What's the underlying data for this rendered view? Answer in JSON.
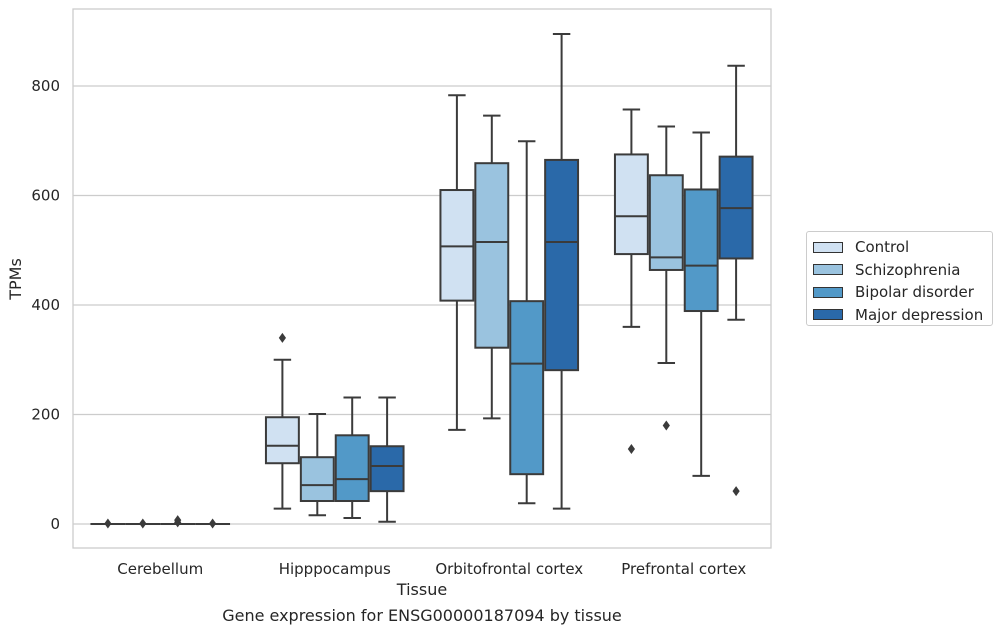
{
  "caption": "Gene expression for ENSG00000187094 by tissue",
  "chart_data": {
    "type": "box",
    "xlabel": "Tissue",
    "ylabel": "TPMs",
    "ylim": [
      -45,
      940
    ],
    "yticks": [
      0,
      200,
      400,
      600,
      800
    ],
    "grid": "horizontal",
    "legend_position": "right",
    "categories": [
      "Cerebellum",
      "Hipppocampus",
      "Orbitofrontal cortex",
      "Prefrontal cortex"
    ],
    "series": [
      {
        "name": "Control",
        "color": "#d0e1f2",
        "boxes": [
          {
            "q1": 0,
            "median": 0,
            "q3": 0,
            "whislo": 0,
            "whishi": 0,
            "fliers": [
              1
            ]
          },
          {
            "q1": 111,
            "median": 143,
            "q3": 195,
            "whislo": 28,
            "whishi": 300,
            "fliers": [
              340
            ]
          },
          {
            "q1": 408,
            "median": 507,
            "q3": 610,
            "whislo": 172,
            "whishi": 783,
            "fliers": []
          },
          {
            "q1": 493,
            "median": 562,
            "q3": 675,
            "whislo": 360,
            "whishi": 757,
            "fliers": [
              137
            ]
          }
        ]
      },
      {
        "name": "Schizophrenia",
        "color": "#9ac3df",
        "boxes": [
          {
            "q1": 0,
            "median": 0,
            "q3": 0,
            "whislo": 0,
            "whishi": 0,
            "fliers": [
              1
            ]
          },
          {
            "q1": 42,
            "median": 71,
            "q3": 122,
            "whislo": 16,
            "whishi": 201,
            "fliers": []
          },
          {
            "q1": 322,
            "median": 515,
            "q3": 659,
            "whislo": 193,
            "whishi": 746,
            "fliers": []
          },
          {
            "q1": 464,
            "median": 487,
            "q3": 637,
            "whislo": 294,
            "whishi": 726,
            "fliers": [
              180
            ]
          }
        ]
      },
      {
        "name": "Bipolar disorder",
        "color": "#5299c8",
        "boxes": [
          {
            "q1": 0,
            "median": 0,
            "q3": 0,
            "whislo": 0,
            "whishi": 0,
            "fliers": [
              3,
              7
            ]
          },
          {
            "q1": 42,
            "median": 82,
            "q3": 162,
            "whislo": 11,
            "whishi": 231,
            "fliers": []
          },
          {
            "q1": 91,
            "median": 293,
            "q3": 407,
            "whislo": 38,
            "whishi": 699,
            "fliers": []
          },
          {
            "q1": 389,
            "median": 472,
            "q3": 611,
            "whislo": 88,
            "whishi": 715,
            "fliers": []
          }
        ]
      },
      {
        "name": "Major depression",
        "color": "#2a69a9",
        "boxes": [
          {
            "q1": 0,
            "median": 0,
            "q3": 0,
            "whislo": 0,
            "whishi": 0,
            "fliers": [
              1
            ]
          },
          {
            "q1": 60,
            "median": 106,
            "q3": 142,
            "whislo": 4,
            "whishi": 231,
            "fliers": []
          },
          {
            "q1": 281,
            "median": 515,
            "q3": 665,
            "whislo": 28,
            "whishi": 895,
            "fliers": []
          },
          {
            "q1": 485,
            "median": 577,
            "q3": 671,
            "whislo": 373,
            "whishi": 837,
            "fliers": [
              60
            ]
          }
        ]
      }
    ]
  }
}
